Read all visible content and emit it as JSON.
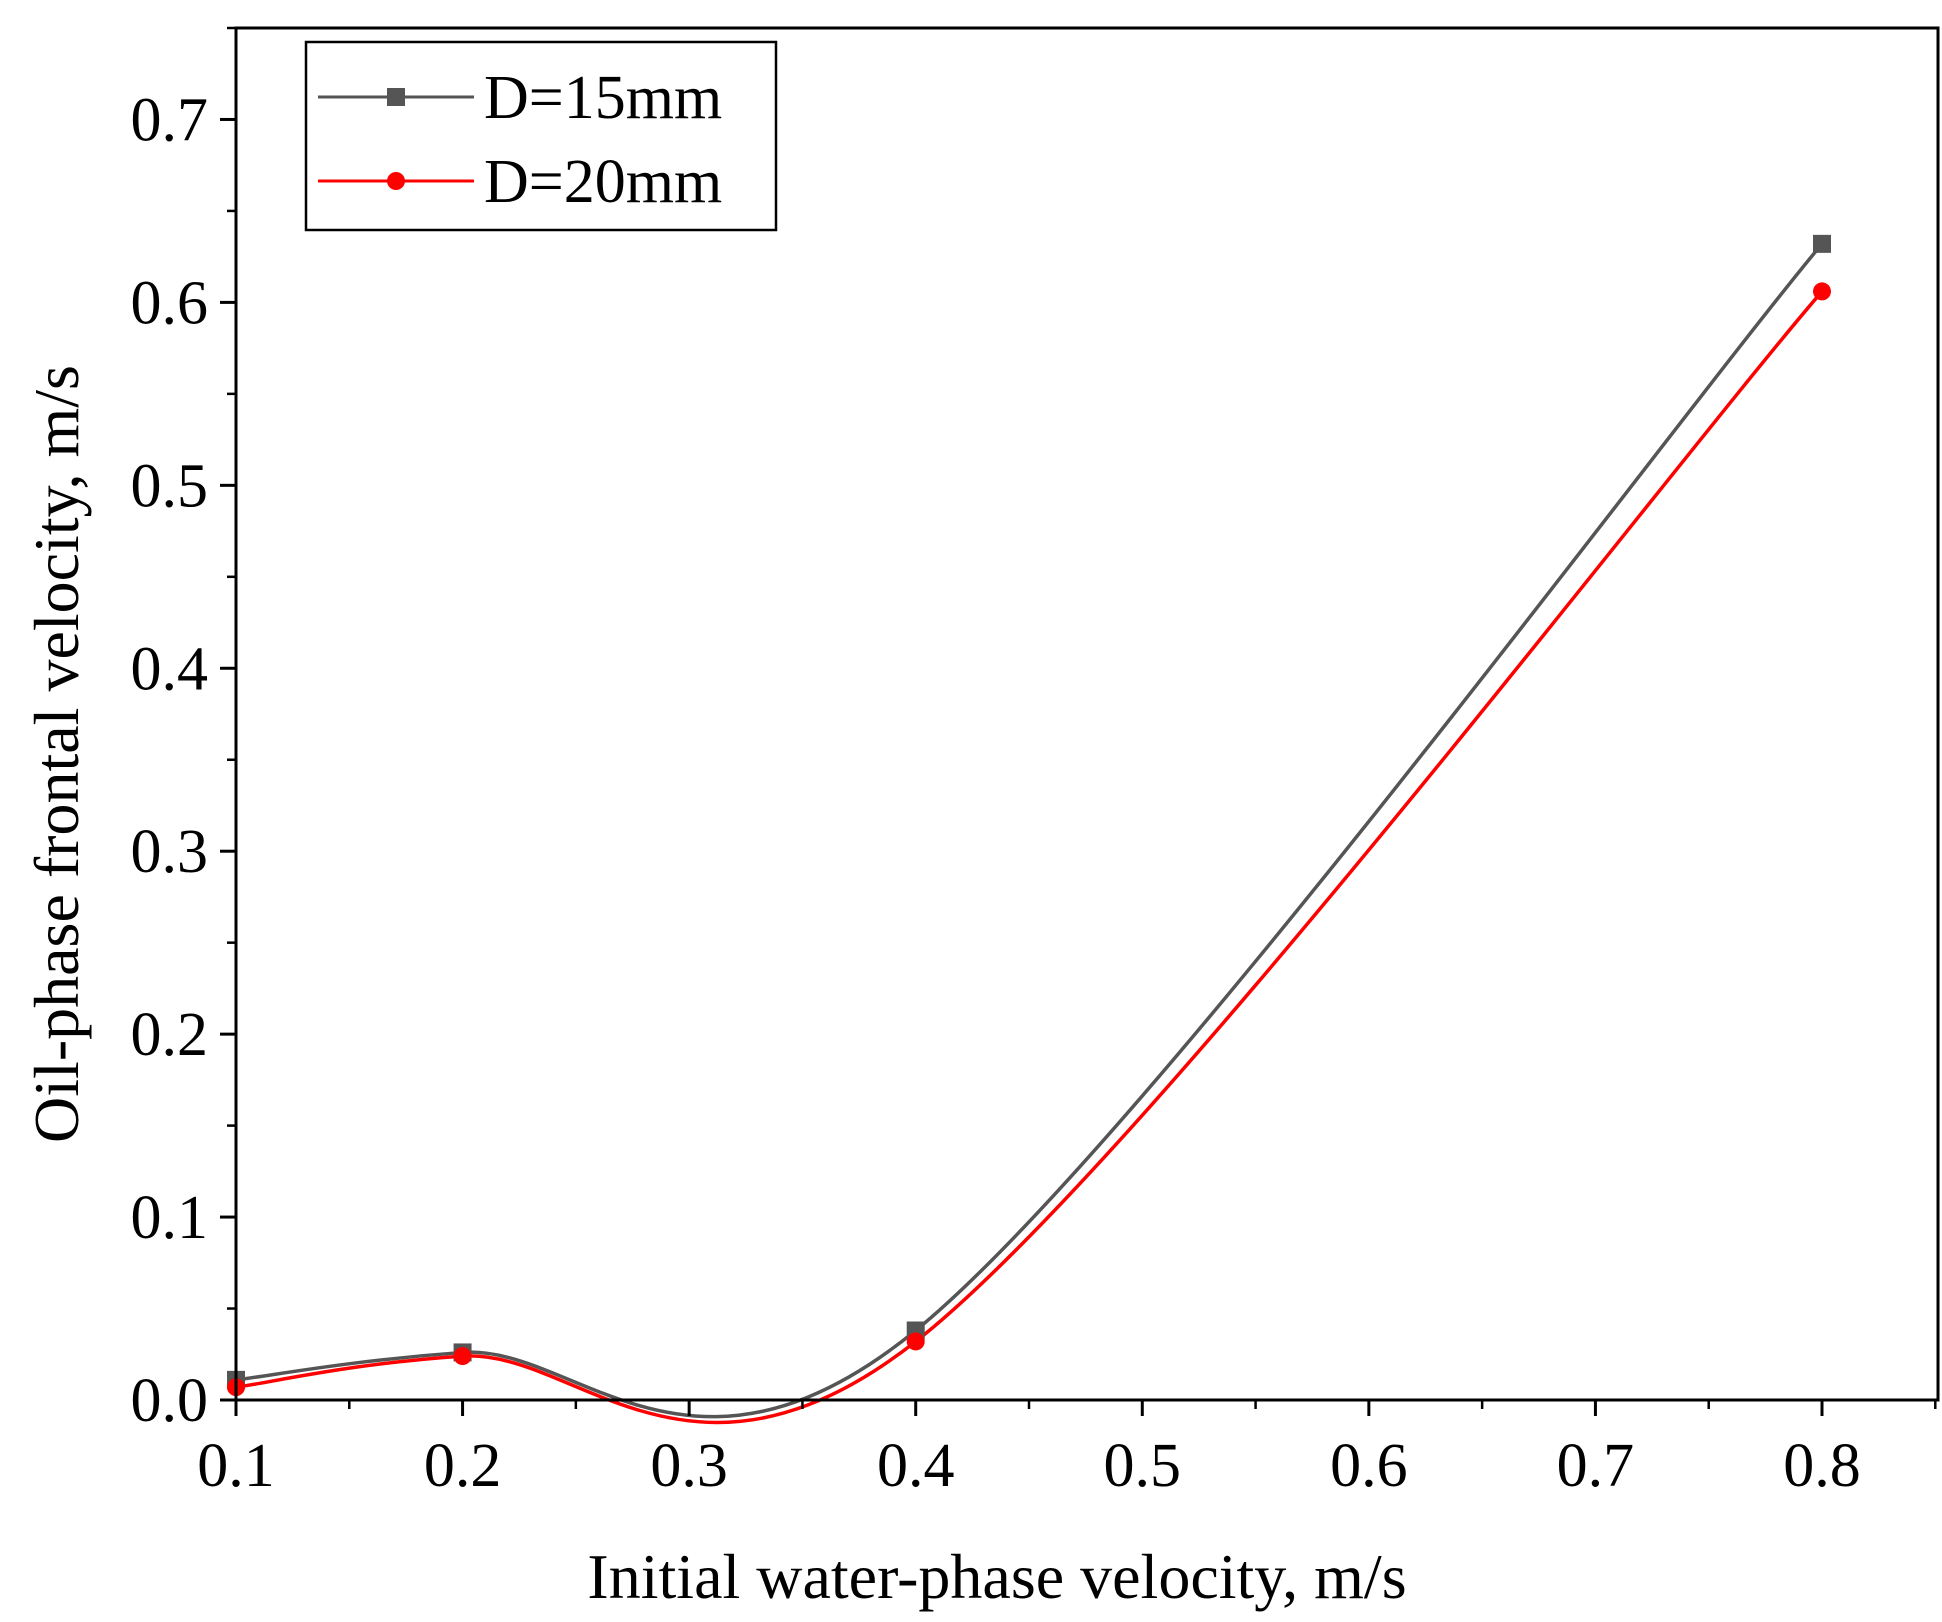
{
  "chart_data": {
    "type": "line",
    "title": "",
    "xlabel": "Initial water-phase velocity, m/s",
    "ylabel": "Oil-phase frontal velocity, m/s",
    "xlim": [
      0.1,
      0.85
    ],
    "ylim": [
      0.0,
      0.75
    ],
    "x_ticks": [
      "0.1",
      "0.2",
      "0.3",
      "0.4",
      "0.5",
      "0.6",
      "0.7",
      "0.8"
    ],
    "y_ticks": [
      "0.0",
      "0.1",
      "0.2",
      "0.3",
      "0.4",
      "0.5",
      "0.6",
      "0.7"
    ],
    "grid": false,
    "legend_position": "top-left",
    "series": [
      {
        "name": "D=15mm",
        "color": "#555555",
        "marker": "square",
        "x": [
          0.1,
          0.2,
          0.4,
          0.8
        ],
        "y": [
          0.011,
          0.026,
          0.038,
          0.632
        ]
      },
      {
        "name": "D=20mm",
        "color": "#ff0000",
        "marker": "circle",
        "x": [
          0.1,
          0.2,
          0.4,
          0.8
        ],
        "y": [
          0.007,
          0.024,
          0.032,
          0.606
        ]
      }
    ]
  }
}
